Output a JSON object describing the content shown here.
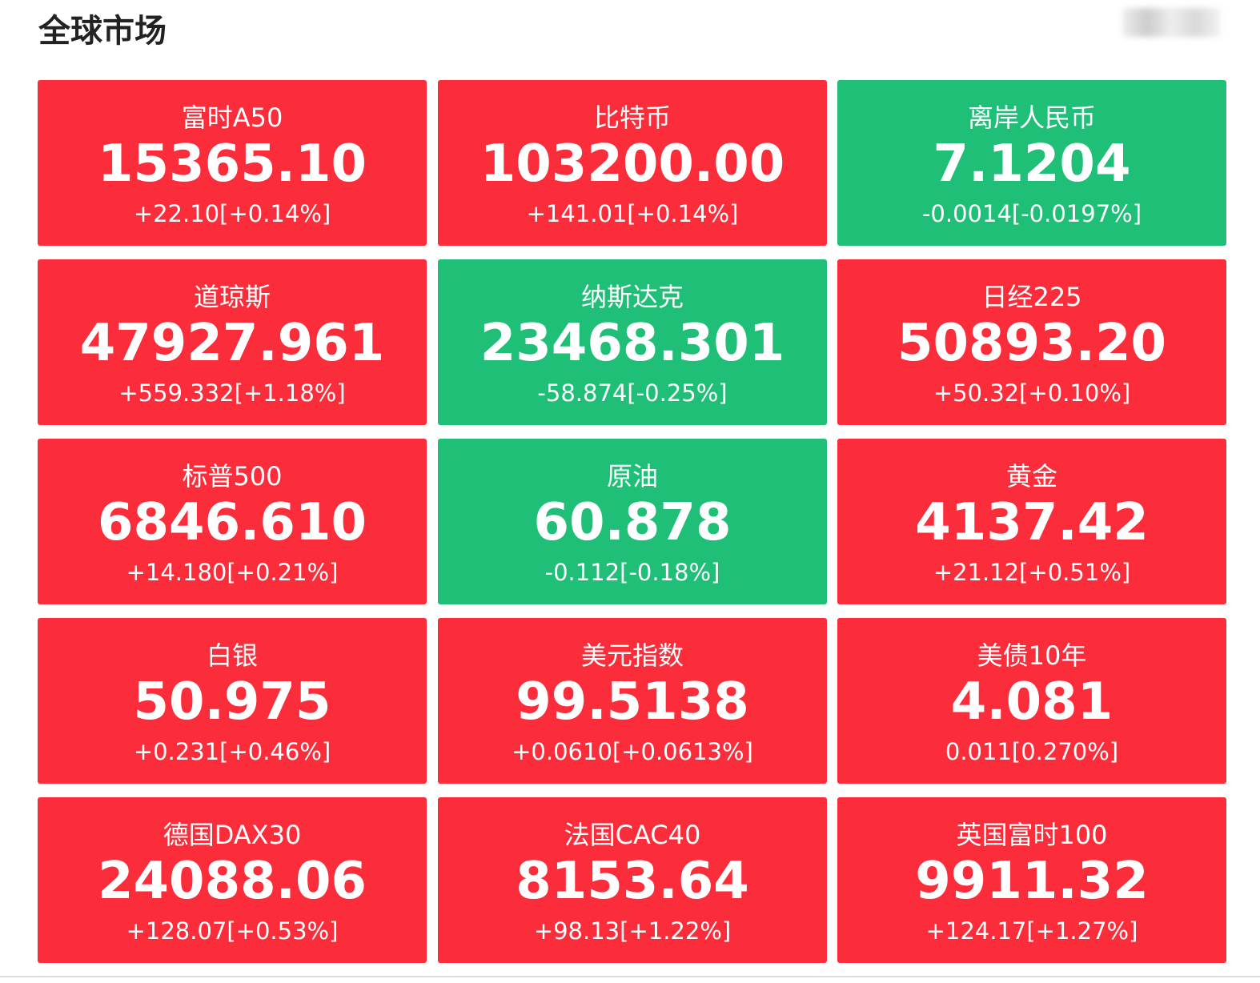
{
  "header": {
    "title": "全球市场"
  },
  "cards": [
    {
      "name": "富时A50",
      "value": "15365.10",
      "change": "+22.10[+0.14%]",
      "color": "#fb2d3b"
    },
    {
      "name": "比特币",
      "value": "103200.00",
      "change": "+141.01[+0.14%]",
      "color": "#fb2d3b"
    },
    {
      "name": "离岸人民币",
      "value": "7.1204",
      "change": "-0.0014[-0.0197%]",
      "color": "#1fbf78"
    },
    {
      "name": "道琼斯",
      "value": "47927.961",
      "change": "+559.332[+1.18%]",
      "color": "#fb2d3b"
    },
    {
      "name": "纳斯达克",
      "value": "23468.301",
      "change": "-58.874[-0.25%]",
      "color": "#1fbf78"
    },
    {
      "name": "日经225",
      "value": "50893.20",
      "change": "+50.32[+0.10%]",
      "color": "#fb2d3b"
    },
    {
      "name": "标普500",
      "value": "6846.610",
      "change": "+14.180[+0.21%]",
      "color": "#fb2d3b"
    },
    {
      "name": "原油",
      "value": "60.878",
      "change": "-0.112[-0.18%]",
      "color": "#1fbf78"
    },
    {
      "name": "黄金",
      "value": "4137.42",
      "change": "+21.12[+0.51%]",
      "color": "#fb2d3b"
    },
    {
      "name": "白银",
      "value": "50.975",
      "change": "+0.231[+0.46%]",
      "color": "#fb2d3b"
    },
    {
      "name": "美元指数",
      "value": "99.5138",
      "change": "+0.0610[+0.0613%]",
      "color": "#fb2d3b"
    },
    {
      "name": "美债10年",
      "value": "4.081",
      "change": "0.011[0.270%]",
      "color": "#fb2d3b"
    },
    {
      "name": "德国DAX30",
      "value": "24088.06",
      "change": "+128.07[+0.53%]",
      "color": "#fb2d3b"
    },
    {
      "name": "法国CAC40",
      "value": "8153.64",
      "change": "+98.13[+1.22%]",
      "color": "#fb2d3b"
    },
    {
      "name": "英国富时100",
      "value": "9911.32",
      "change": "+124.17[+1.27%]",
      "color": "#fb2d3b"
    }
  ]
}
